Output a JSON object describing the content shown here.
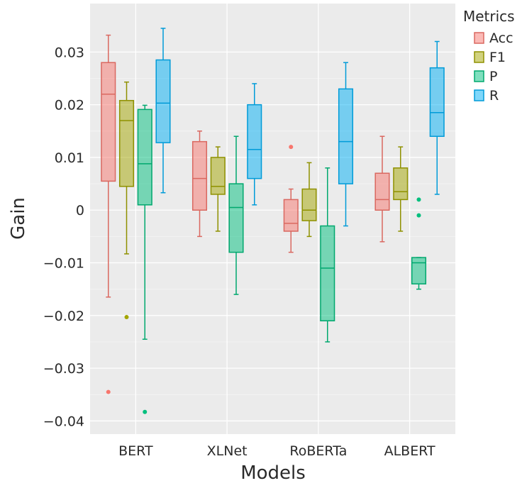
{
  "chart_data": {
    "type": "box",
    "xlabel": "Models",
    "ylabel": "Gain",
    "categories": [
      "BERT",
      "XLNet",
      "RoBERTa",
      "ALBERT"
    ],
    "ylim": [
      -0.0425,
      0.0392
    ],
    "yticks": [
      0.03,
      0.02,
      0.01,
      0,
      -0.01,
      -0.02,
      -0.03,
      -0.04
    ],
    "ytick_labels": [
      "0.03",
      "0.02",
      "0.01",
      "0",
      "−0.01",
      "−0.02",
      "−0.03",
      "−0.04"
    ],
    "grid": true,
    "legend": {
      "title": "Metrics",
      "position": "right"
    },
    "series": [
      {
        "name": "Acc",
        "color": "#f8766d",
        "boxes": [
          {
            "category": "BERT",
            "q1": 0.0055,
            "median": 0.022,
            "q3": 0.028,
            "whisker_low": -0.0165,
            "whisker_high": 0.0332,
            "outliers": [
              -0.0345
            ]
          },
          {
            "category": "XLNet",
            "q1": 0.0,
            "median": 0.006,
            "q3": 0.013,
            "whisker_low": -0.005,
            "whisker_high": 0.015,
            "outliers": []
          },
          {
            "category": "RoBERTa",
            "q1": -0.004,
            "median": -0.0025,
            "q3": 0.002,
            "whisker_low": -0.008,
            "whisker_high": 0.004,
            "outliers": [
              0.012
            ]
          },
          {
            "category": "ALBERT",
            "q1": 0.0,
            "median": 0.002,
            "q3": 0.007,
            "whisker_low": -0.006,
            "whisker_high": 0.014,
            "outliers": []
          }
        ]
      },
      {
        "name": "F1",
        "color": "#a3a500",
        "boxes": [
          {
            "category": "BERT",
            "q1": 0.0045,
            "median": 0.017,
            "q3": 0.0208,
            "whisker_low": -0.0083,
            "whisker_high": 0.0243,
            "outliers": [
              -0.0203
            ]
          },
          {
            "category": "XLNet",
            "q1": 0.003,
            "median": 0.0045,
            "q3": 0.01,
            "whisker_low": -0.004,
            "whisker_high": 0.012,
            "outliers": []
          },
          {
            "category": "RoBERTa",
            "q1": -0.002,
            "median": 0.0,
            "q3": 0.004,
            "whisker_low": -0.005,
            "whisker_high": 0.009,
            "outliers": []
          },
          {
            "category": "ALBERT",
            "q1": 0.002,
            "median": 0.0035,
            "q3": 0.008,
            "whisker_low": -0.004,
            "whisker_high": 0.012,
            "outliers": []
          }
        ]
      },
      {
        "name": "P",
        "color": "#00bf7d",
        "boxes": [
          {
            "category": "BERT",
            "q1": 0.001,
            "median": 0.0088,
            "q3": 0.0191,
            "whisker_low": -0.0245,
            "whisker_high": 0.0199,
            "outliers": [
              -0.0383
            ]
          },
          {
            "category": "XLNet",
            "q1": -0.008,
            "median": 0.0005,
            "q3": 0.005,
            "whisker_low": -0.016,
            "whisker_high": 0.014,
            "outliers": []
          },
          {
            "category": "RoBERTa",
            "q1": -0.021,
            "median": -0.011,
            "q3": -0.003,
            "whisker_low": -0.025,
            "whisker_high": 0.008,
            "outliers": []
          },
          {
            "category": "ALBERT",
            "q1": -0.014,
            "median": -0.01,
            "q3": -0.009,
            "whisker_low": -0.015,
            "whisker_high": -0.009,
            "outliers": [
              0.002,
              -0.001
            ]
          }
        ]
      },
      {
        "name": "R",
        "color": "#00b0f6",
        "boxes": [
          {
            "category": "BERT",
            "q1": 0.0128,
            "median": 0.0203,
            "q3": 0.0285,
            "whisker_low": 0.0033,
            "whisker_high": 0.0345,
            "outliers": []
          },
          {
            "category": "XLNet",
            "q1": 0.006,
            "median": 0.0115,
            "q3": 0.02,
            "whisker_low": 0.001,
            "whisker_high": 0.024,
            "outliers": []
          },
          {
            "category": "RoBERTa",
            "q1": 0.005,
            "median": 0.013,
            "q3": 0.023,
            "whisker_low": -0.003,
            "whisker_high": 0.028,
            "outliers": []
          },
          {
            "category": "ALBERT",
            "q1": 0.014,
            "median": 0.0185,
            "q3": 0.027,
            "whisker_low": 0.003,
            "whisker_high": 0.032,
            "outliers": []
          }
        ]
      }
    ]
  }
}
